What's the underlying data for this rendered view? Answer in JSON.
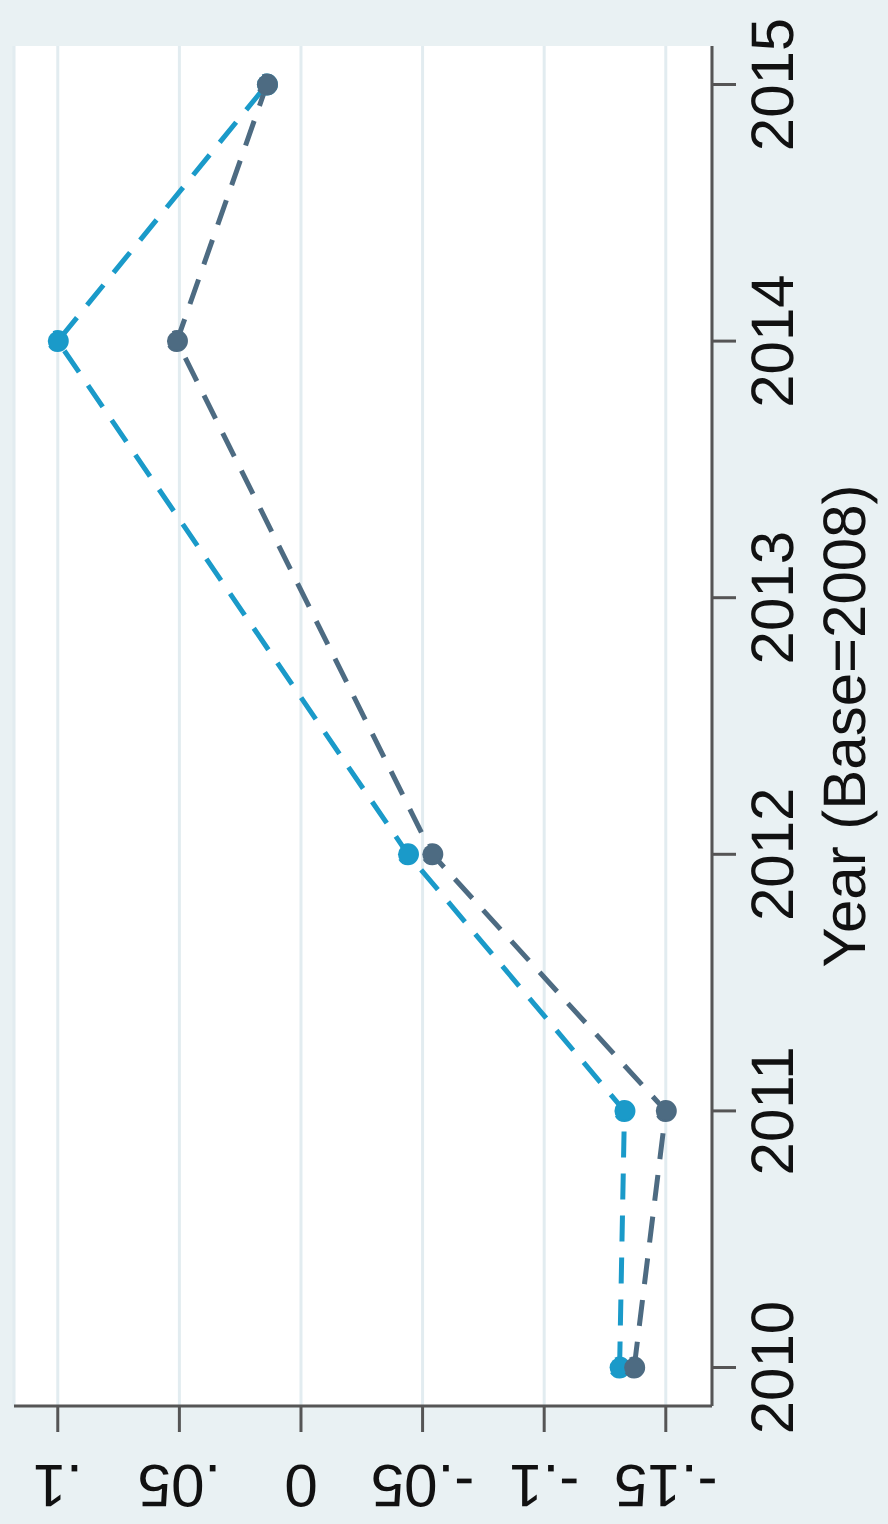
{
  "chart_data": {
    "type": "line",
    "ylabel": "Year (Base=2008)",
    "xlim": [
      0.118,
      -0.169
    ],
    "xticks": [
      {
        "value": 0.1,
        "label": ".1"
      },
      {
        "value": 0.05,
        "label": ".05"
      },
      0,
      {
        "value": -0.05,
        "label": "-.05"
      },
      {
        "value": -0.1,
        "label": "-.1"
      },
      {
        "value": -0.15,
        "label": "-.15"
      }
    ],
    "ylim": [
      2009.85,
      2015.15
    ],
    "yticks": [
      2010,
      2011,
      2012,
      2013,
      2014,
      2015
    ],
    "grid": "x",
    "marker": "circle",
    "line_style": "dashed",
    "series": [
      {
        "color": "#1a9ac9",
        "x": [
          -0.131,
          -0.133,
          -0.044,
          0.1,
          0.014
        ],
        "values": [
          2010,
          2011,
          2012,
          2014,
          2015
        ]
      },
      {
        "color": "#4d6b82",
        "x": [
          -0.137,
          -0.15,
          -0.054,
          0.051,
          0.014
        ],
        "values": [
          2010,
          2011,
          2012,
          2014,
          2015
        ]
      }
    ]
  }
}
